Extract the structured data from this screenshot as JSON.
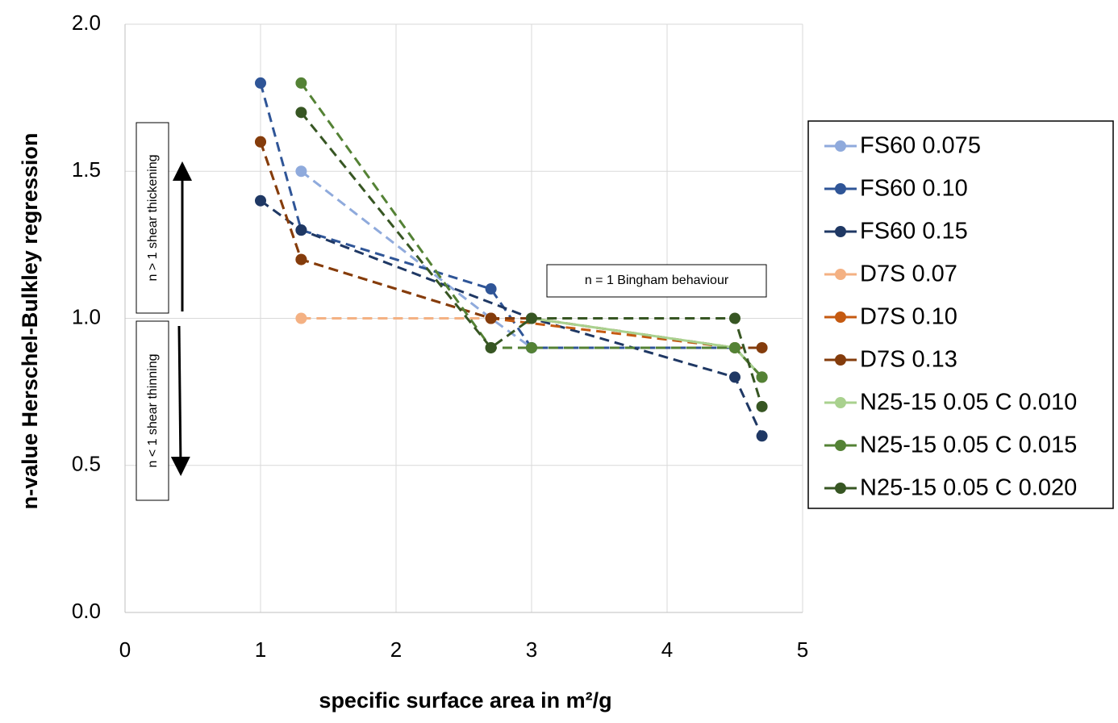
{
  "chart_data": {
    "type": "line",
    "y_label": "n-value Herschel-Bulkley regression",
    "x_label": "specific surface area in m²/g",
    "xlim": [
      0,
      5
    ],
    "xticks": [
      0,
      1,
      2,
      3,
      4,
      5
    ],
    "ylim": [
      0,
      2
    ],
    "yticks": [
      {
        "value": 0,
        "label": "0.0"
      },
      {
        "value": 0.5,
        "label": "0.5"
      },
      {
        "value": 1,
        "label": "1.0"
      },
      {
        "value": 1.5,
        "label": "1.5"
      },
      {
        "value": 2,
        "label": "2.0"
      }
    ],
    "grid": true,
    "legend": "right",
    "annotations": [
      "n > 1 shear thickening",
      "n < 1 shear thinning",
      "n = 1 Bingham behaviour"
    ],
    "series": [
      {
        "name": "FS60 0.075",
        "color": "#8faadc",
        "dashed": true,
        "x": [
          1.3,
          2.7,
          3,
          4.5,
          4.7
        ],
        "values": [
          1.5,
          1.0,
          0.9,
          0.9,
          0.8
        ]
      },
      {
        "name": "FS60 0.10",
        "color": "#2f5597",
        "dashed": true,
        "x": [
          1,
          1.3,
          2.7,
          3,
          4.5,
          4.7
        ],
        "values": [
          1.8,
          1.3,
          1.1,
          0.9,
          0.9,
          0.8
        ]
      },
      {
        "name": "FS60 0.15",
        "color": "#1f3864",
        "dashed": true,
        "x": [
          1,
          1.3,
          3,
          4.5,
          4.7
        ],
        "values": [
          1.4,
          1.3,
          1.0,
          0.8,
          0.6
        ]
      },
      {
        "name": "D7S 0.07",
        "color": "#f4b183",
        "dashed": true,
        "x": [
          1.3,
          2.7
        ],
        "values": [
          1.0,
          1.0
        ]
      },
      {
        "name": "D7S 0.10",
        "color": "#c55a11",
        "dashed": true,
        "x": [
          1,
          1.3,
          2.7,
          4.5,
          4.7
        ],
        "values": [
          1.6,
          1.2,
          1.0,
          0.9,
          0.8
        ]
      },
      {
        "name": "D7S 0.13",
        "color": "#843c0c",
        "dashed": true,
        "x": [
          1,
          1.3,
          2.7,
          3,
          4.5,
          4.7
        ],
        "values": [
          1.6,
          1.2,
          1.0,
          1.0,
          0.9,
          0.9
        ]
      },
      {
        "name": "N25-15 0.05 C 0.010",
        "color": "#a9d18e",
        "dashed": false,
        "x": [
          3,
          4.5,
          4.7
        ],
        "values": [
          1.0,
          0.9,
          0.8
        ]
      },
      {
        "name": "N25-15 0.05 C 0.015",
        "color": "#548235",
        "dashed": true,
        "x": [
          1.3,
          2.7,
          3,
          4.5,
          4.7
        ],
        "values": [
          1.8,
          0.9,
          0.9,
          0.9,
          0.8
        ]
      },
      {
        "name": "N25-15 0.05 C 0.020",
        "color": "#375623",
        "dashed": true,
        "x": [
          1.3,
          2.7,
          3,
          4.5,
          4.7
        ],
        "values": [
          1.7,
          0.9,
          1.0,
          1.0,
          0.7
        ]
      }
    ]
  }
}
